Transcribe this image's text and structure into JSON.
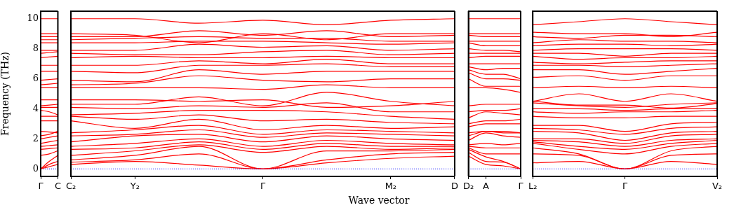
{
  "chart_data": [
    {
      "type": "line",
      "ylabel": "Frequency (THz)",
      "categories": [
        "Γ",
        null,
        "C"
      ],
      "ylim": [
        -0.5,
        10.5
      ],
      "yticks": [
        0,
        2,
        4,
        6,
        8,
        10
      ],
      "grid": false,
      "legend": false,
      "marker": "none",
      "line_style": "solid",
      "ref_lines": [
        {
          "axis": "y",
          "value": 0,
          "color": "#0000ff",
          "line_style": "dotted"
        }
      ],
      "series": [
        {
          "color": "#ff0000",
          "values": [
            0,
            0.15,
            0.3
          ]
        },
        {
          "color": "#ff0000",
          "values": [
            0,
            0.3,
            0.5
          ]
        },
        {
          "color": "#ff0000",
          "values": [
            0,
            0.5,
            0.9
          ]
        },
        {
          "color": "#ff0000",
          "values": [
            0.9,
            1.0,
            1.2
          ]
        },
        {
          "color": "#ff0000",
          "values": [
            1.3,
            1.35,
            1.4
          ]
        },
        {
          "color": "#ff0000",
          "values": [
            1.5,
            1.55,
            1.6
          ]
        },
        {
          "color": "#ff0000",
          "values": [
            1.7,
            1.8,
            1.9
          ]
        },
        {
          "color": "#ff0000",
          "values": [
            2.0,
            2.1,
            2.2
          ]
        },
        {
          "color": "#ff0000",
          "values": [
            2.2,
            2.3,
            2.5
          ]
        },
        {
          "color": "#ff0000",
          "values": [
            2.5,
            2.45,
            2.4
          ]
        },
        {
          "color": "#ff0000",
          "values": [
            3.2,
            3.2,
            3.2
          ]
        },
        {
          "color": "#ff0000",
          "values": [
            3.5,
            3.5,
            3.5
          ]
        },
        {
          "color": "#ff0000",
          "values": [
            3.9,
            3.8,
            3.6
          ]
        },
        {
          "color": "#ff0000",
          "values": [
            4.1,
            4.1,
            4.1
          ]
        },
        {
          "color": "#ff0000",
          "values": [
            4.2,
            4.25,
            4.3
          ]
        },
        {
          "color": "#ff0000",
          "values": [
            4.6,
            4.6,
            4.6
          ]
        },
        {
          "color": "#ff0000",
          "values": [
            5.4,
            5.4,
            5.4
          ]
        },
        {
          "color": "#ff0000",
          "values": [
            5.6,
            5.65,
            5.7
          ]
        },
        {
          "color": "#ff0000",
          "values": [
            5.9,
            5.95,
            6.0
          ]
        },
        {
          "color": "#ff0000",
          "values": [
            6.5,
            6.5,
            6.5
          ]
        },
        {
          "color": "#ff0000",
          "values": [
            6.9,
            6.9,
            6.9
          ]
        },
        {
          "color": "#ff0000",
          "values": [
            7.4,
            7.45,
            7.5
          ]
        },
        {
          "color": "#ff0000",
          "values": [
            7.7,
            7.75,
            7.8
          ]
        },
        {
          "color": "#ff0000",
          "values": [
            7.9,
            7.9,
            7.9
          ]
        },
        {
          "color": "#ff0000",
          "values": [
            8.4,
            8.4,
            8.4
          ]
        },
        {
          "color": "#ff0000",
          "values": [
            8.6,
            8.6,
            8.6
          ]
        },
        {
          "color": "#ff0000",
          "values": [
            8.8,
            8.8,
            8.8
          ]
        },
        {
          "color": "#ff0000",
          "values": [
            9.0,
            9.0,
            9.0
          ]
        },
        {
          "color": "#ff0000",
          "values": [
            10.0,
            10.0,
            10.0
          ]
        }
      ]
    },
    {
      "type": "line",
      "xlabel": "Wave vector",
      "tick_labels": "x",
      "categories": [
        "C₂",
        "Y₂",
        null,
        "Γ",
        null,
        "M₂",
        "D"
      ],
      "ylim": [
        -0.5,
        10.5
      ],
      "yticks": [
        0,
        2,
        4,
        6,
        8,
        10
      ],
      "grid": false,
      "legend": false,
      "marker": "none",
      "line_style": "solid",
      "ref_lines": [
        {
          "axis": "y",
          "value": 0,
          "color": "#0000ff",
          "line_style": "dotted"
        }
      ],
      "series": [
        {
          "color": "#ff0000",
          "values": [
            0.3,
            0.5,
            0.25,
            0,
            0.4,
            0.7,
            0.85
          ]
        },
        {
          "color": "#ff0000",
          "values": [
            0.45,
            0.6,
            1.0,
            0,
            0.6,
            1.0,
            1.1
          ]
        },
        {
          "color": "#ff0000",
          "values": [
            0.6,
            0.9,
            1.5,
            0,
            1.2,
            1.2,
            1.3
          ]
        },
        {
          "color": "#ff0000",
          "values": [
            0.9,
            1.2,
            1.6,
            1.1,
            1.5,
            1.3,
            1.4
          ]
        },
        {
          "color": "#ff0000",
          "values": [
            1.3,
            1.4,
            1.8,
            1.3,
            1.7,
            1.5,
            1.5
          ]
        },
        {
          "color": "#ff0000",
          "values": [
            1.5,
            1.7,
            2.0,
            1.5,
            1.9,
            1.7,
            1.6
          ]
        },
        {
          "color": "#ff0000",
          "values": [
            1.8,
            2.2,
            2.3,
            1.8,
            2.2,
            2.0,
            1.9
          ]
        },
        {
          "color": "#ff0000",
          "values": [
            2.2,
            2.3,
            2.6,
            2.1,
            2.4,
            2.3,
            2.2
          ]
        },
        {
          "color": "#ff0000",
          "values": [
            2.4,
            2.6,
            2.9,
            2.3,
            2.6,
            2.5,
            2.4
          ]
        },
        {
          "color": "#ff0000",
          "values": [
            3.2,
            2.7,
            3.3,
            2.6,
            2.9,
            2.7,
            2.8
          ]
        },
        {
          "color": "#ff0000",
          "values": [
            3.5,
            3.3,
            3.6,
            3.2,
            3.3,
            3.1,
            3.0
          ]
        },
        {
          "color": "#ff0000",
          "values": [
            3.6,
            3.7,
            3.9,
            3.9,
            3.8,
            3.5,
            3.3
          ]
        },
        {
          "color": "#ff0000",
          "values": [
            4.1,
            4.0,
            4.2,
            4.1,
            4.4,
            3.8,
            3.8
          ]
        },
        {
          "color": "#ff0000",
          "values": [
            4.3,
            4.3,
            4.8,
            4.2,
            5.1,
            4.5,
            4.2
          ]
        },
        {
          "color": "#ff0000",
          "values": [
            4.6,
            4.6,
            4.5,
            4.6,
            4.1,
            4.2,
            4.5
          ]
        },
        {
          "color": "#ff0000",
          "values": [
            5.4,
            5.4,
            5.4,
            5.3,
            5.6,
            5.4,
            5.4
          ]
        },
        {
          "color": "#ff0000",
          "values": [
            5.6,
            5.7,
            6.2,
            5.9,
            5.8,
            6.0,
            6.0
          ]
        },
        {
          "color": "#ff0000",
          "values": [
            5.9,
            5.8,
            6.6,
            6.3,
            6.5,
            6.5,
            6.5
          ]
        },
        {
          "color": "#ff0000",
          "values": [
            6.5,
            6.4,
            6.9,
            6.9,
            7.0,
            6.8,
            6.8
          ]
        },
        {
          "color": "#ff0000",
          "values": [
            6.9,
            6.9,
            7.2,
            7.0,
            7.3,
            7.0,
            7.0
          ]
        },
        {
          "color": "#ff0000",
          "values": [
            7.4,
            7.5,
            7.4,
            7.4,
            7.5,
            7.4,
            7.4
          ]
        },
        {
          "color": "#ff0000",
          "values": [
            7.7,
            7.6,
            7.6,
            7.8,
            7.9,
            7.6,
            7.7
          ]
        },
        {
          "color": "#ff0000",
          "values": [
            7.9,
            7.9,
            8.3,
            8.1,
            8.2,
            7.9,
            8.0
          ]
        },
        {
          "color": "#ff0000",
          "values": [
            8.4,
            8.4,
            8.5,
            8.5,
            8.4,
            8.3,
            8.4
          ]
        },
        {
          "color": "#ff0000",
          "values": [
            8.6,
            8.7,
            8.8,
            8.7,
            8.7,
            8.5,
            8.5
          ]
        },
        {
          "color": "#ff0000",
          "values": [
            8.8,
            8.8,
            9.2,
            8.9,
            9.2,
            8.8,
            8.9
          ]
        },
        {
          "color": "#ff0000",
          "values": [
            9.0,
            8.9,
            8.4,
            9.0,
            8.6,
            9.0,
            9.0
          ]
        },
        {
          "color": "#ff0000",
          "values": [
            10.0,
            10.0,
            9.7,
            9.9,
            9.6,
            9.9,
            10.0
          ]
        }
      ]
    },
    {
      "type": "line",
      "tick_labels": "x",
      "categories": [
        "D₂",
        "A",
        null,
        "Γ"
      ],
      "ylim": [
        -0.5,
        10.5
      ],
      "yticks": [
        0,
        2,
        4,
        6,
        8,
        10
      ],
      "grid": false,
      "legend": false,
      "marker": "none",
      "line_style": "solid",
      "ref_lines": [
        {
          "axis": "y",
          "value": 0,
          "color": "#0000ff",
          "line_style": "dotted"
        }
      ],
      "series": [
        {
          "color": "#ff0000",
          "values": [
            0.85,
            0.3,
            0.2,
            0
          ]
        },
        {
          "color": "#ff0000",
          "values": [
            1.1,
            0.5,
            0.45,
            0
          ]
        },
        {
          "color": "#ff0000",
          "values": [
            1.3,
            0.8,
            0.5,
            0
          ]
        },
        {
          "color": "#ff0000",
          "values": [
            1.4,
            1.0,
            1.0,
            1.0
          ]
        },
        {
          "color": "#ff0000",
          "values": [
            1.5,
            1.4,
            1.4,
            1.4
          ]
        },
        {
          "color": "#ff0000",
          "values": [
            1.6,
            1.7,
            1.6,
            1.7
          ]
        },
        {
          "color": "#ff0000",
          "values": [
            1.9,
            2.4,
            2.2,
            2.1
          ]
        },
        {
          "color": "#ff0000",
          "values": [
            2.2,
            2.5,
            2.4,
            2.4
          ]
        },
        {
          "color": "#ff0000",
          "values": [
            2.4,
            2.5,
            2.5,
            2.4
          ]
        },
        {
          "color": "#ff0000",
          "values": [
            2.8,
            3.0,
            3.0,
            3.0
          ]
        },
        {
          "color": "#ff0000",
          "values": [
            3.0,
            3.2,
            3.2,
            3.3
          ]
        },
        {
          "color": "#ff0000",
          "values": [
            3.4,
            3.8,
            3.7,
            3.6
          ]
        },
        {
          "color": "#ff0000",
          "values": [
            3.8,
            3.9,
            3.9,
            4.0
          ]
        },
        {
          "color": "#ff0000",
          "values": [
            4.2,
            4.3,
            4.3,
            4.3
          ]
        },
        {
          "color": "#ff0000",
          "values": [
            5.4,
            5.4,
            5.3,
            5.1
          ]
        },
        {
          "color": "#ff0000",
          "values": [
            6.0,
            5.5,
            5.5,
            5.5
          ]
        },
        {
          "color": "#ff0000",
          "values": [
            6.4,
            6.0,
            6.0,
            5.9
          ]
        },
        {
          "color": "#ff0000",
          "values": [
            6.6,
            6.3,
            6.3,
            6.0
          ]
        },
        {
          "color": "#ff0000",
          "values": [
            6.8,
            6.6,
            6.7,
            6.7
          ]
        },
        {
          "color": "#ff0000",
          "values": [
            7.0,
            7.0,
            7.0,
            7.0
          ]
        },
        {
          "color": "#ff0000",
          "values": [
            7.4,
            7.5,
            7.5,
            7.5
          ]
        },
        {
          "color": "#ff0000",
          "values": [
            7.7,
            7.7,
            7.7,
            7.7
          ]
        },
        {
          "color": "#ff0000",
          "values": [
            8.0,
            7.9,
            7.9,
            7.8
          ]
        },
        {
          "color": "#ff0000",
          "values": [
            8.4,
            8.2,
            8.2,
            8.2
          ]
        },
        {
          "color": "#ff0000",
          "values": [
            8.5,
            8.5,
            8.5,
            8.5
          ]
        },
        {
          "color": "#ff0000",
          "values": [
            8.9,
            8.8,
            8.8,
            8.8
          ]
        },
        {
          "color": "#ff0000",
          "values": [
            9.0,
            9.0,
            9.0,
            9.0
          ]
        },
        {
          "color": "#ff0000",
          "values": [
            10.0,
            10.0,
            10.0,
            10.0
          ]
        }
      ]
    },
    {
      "type": "line",
      "tick_labels": "x",
      "categories": [
        "L₂",
        null,
        "Γ",
        null,
        "V₂"
      ],
      "ylim": [
        -0.5,
        10.5
      ],
      "yticks": [
        0,
        2,
        4,
        6,
        8,
        10
      ],
      "grid": false,
      "legend": false,
      "marker": "none",
      "line_style": "solid",
      "ref_lines": [
        {
          "axis": "y",
          "value": 0,
          "color": "#0000ff",
          "line_style": "dotted"
        }
      ],
      "series": [
        {
          "color": "#ff0000",
          "values": [
            0.4,
            0.5,
            0,
            0.5,
            0.3
          ]
        },
        {
          "color": "#ff0000",
          "values": [
            1.0,
            0.9,
            0,
            0.9,
            1.0
          ]
        },
        {
          "color": "#ff0000",
          "values": [
            1.4,
            1.0,
            0,
            1.2,
            1.5
          ]
        },
        {
          "color": "#ff0000",
          "values": [
            1.7,
            1.3,
            1.0,
            1.5,
            1.7
          ]
        },
        {
          "color": "#ff0000",
          "values": [
            1.8,
            1.5,
            1.3,
            1.7,
            1.9
          ]
        },
        {
          "color": "#ff0000",
          "values": [
            1.9,
            1.8,
            1.5,
            1.9,
            2.0
          ]
        },
        {
          "color": "#ff0000",
          "values": [
            2.0,
            2.0,
            1.7,
            2.2,
            2.3
          ]
        },
        {
          "color": "#ff0000",
          "values": [
            2.5,
            2.4,
            1.9,
            2.4,
            2.5
          ]
        },
        {
          "color": "#ff0000",
          "values": [
            2.7,
            2.6,
            2.3,
            2.7,
            2.8
          ]
        },
        {
          "color": "#ff0000",
          "values": [
            2.9,
            2.9,
            2.5,
            3.0,
            3.1
          ]
        },
        {
          "color": "#ff0000",
          "values": [
            3.5,
            3.4,
            3.4,
            3.5,
            3.5
          ]
        },
        {
          "color": "#ff0000",
          "values": [
            3.8,
            3.7,
            3.8,
            3.8,
            3.9
          ]
        },
        {
          "color": "#ff0000",
          "values": [
            4.0,
            4.0,
            3.9,
            4.0,
            4.0
          ]
        },
        {
          "color": "#ff0000",
          "values": [
            4.4,
            4.2,
            4.1,
            4.3,
            4.4
          ]
        },
        {
          "color": "#ff0000",
          "values": [
            4.5,
            5.0,
            4.5,
            5.0,
            4.5
          ]
        },
        {
          "color": "#ff0000",
          "values": [
            4.5,
            4.25,
            4.25,
            4.05,
            4.35
          ]
        },
        {
          "color": "#ff0000",
          "values": [
            5.4,
            5.5,
            5.4,
            5.5,
            5.4
          ]
        },
        {
          "color": "#ff0000",
          "values": [
            6.1,
            6.2,
            5.9,
            6.2,
            6.2
          ]
        },
        {
          "color": "#ff0000",
          "values": [
            6.6,
            6.6,
            6.3,
            6.5,
            6.7
          ]
        },
        {
          "color": "#ff0000",
          "values": [
            6.9,
            6.9,
            6.8,
            6.9,
            7.0
          ]
        },
        {
          "color": "#ff0000",
          "values": [
            7.1,
            7.0,
            7.1,
            7.2,
            7.2
          ]
        },
        {
          "color": "#ff0000",
          "values": [
            7.5,
            7.3,
            7.4,
            7.4,
            7.5
          ]
        },
        {
          "color": "#ff0000",
          "values": [
            7.7,
            7.7,
            7.5,
            7.7,
            7.7
          ]
        },
        {
          "color": "#ff0000",
          "values": [
            7.9,
            8.0,
            8.0,
            8.0,
            7.9
          ]
        },
        {
          "color": "#ff0000",
          "values": [
            8.2,
            8.3,
            8.3,
            8.2,
            8.3
          ]
        },
        {
          "color": "#ff0000",
          "values": [
            8.4,
            8.6,
            8.5,
            8.5,
            8.4
          ]
        },
        {
          "color": "#ff0000",
          "values": [
            8.8,
            8.7,
            8.9,
            8.9,
            8.8
          ]
        },
        {
          "color": "#ff0000",
          "values": [
            9.1,
            9.0,
            9.0,
            8.8,
            9.1
          ]
        },
        {
          "color": "#ff0000",
          "values": [
            9.6,
            9.8,
            10.0,
            9.8,
            9.6
          ]
        }
      ]
    }
  ]
}
